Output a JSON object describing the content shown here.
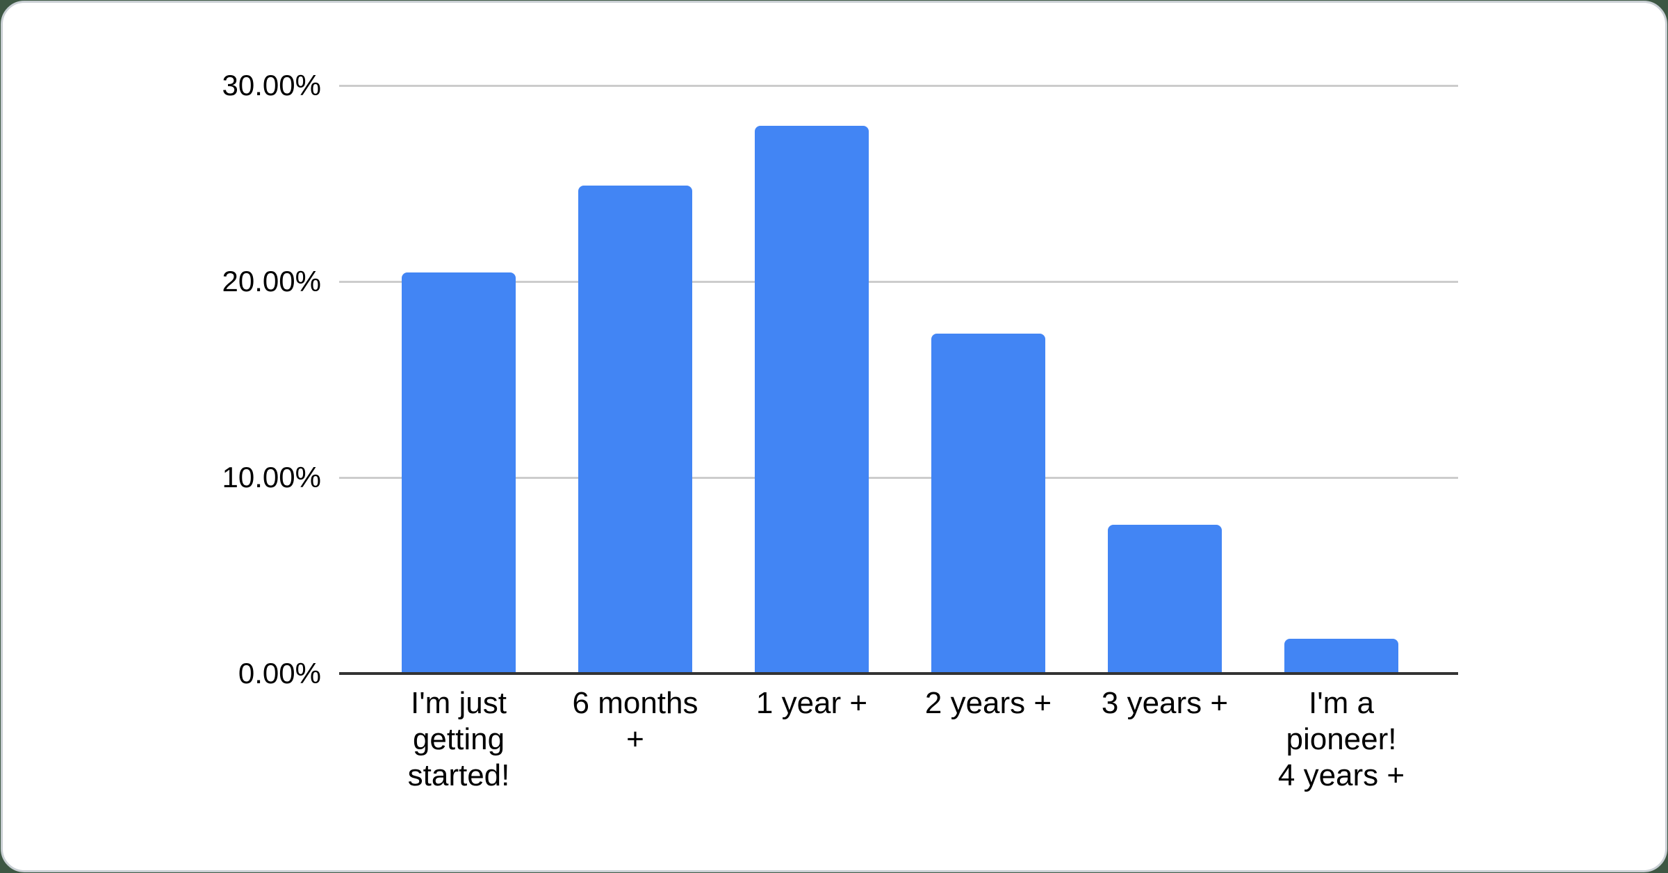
{
  "page": {
    "background_color": "#3d5743"
  },
  "card": {
    "background_color": "#ffffff",
    "border_color": "#c9cfd4"
  },
  "chart_data": {
    "type": "bar",
    "title": "",
    "xlabel": "",
    "ylabel": "",
    "categories": [
      "I'm just getting started!",
      "6 months +",
      "1 year +",
      "2 years +",
      "3 years +",
      "I'm a pioneer! 4 years +"
    ],
    "category_lines": [
      [
        "I'm just",
        "getting",
        "started!"
      ],
      [
        "6 months",
        "+"
      ],
      [
        "1 year +"
      ],
      [
        "2 years +"
      ],
      [
        "3 years +"
      ],
      [
        "I'm a",
        "pioneer!",
        "4 years +"
      ]
    ],
    "values": [
      20.45,
      24.89,
      27.96,
      17.34,
      7.59,
      1.77
    ],
    "value_unit": "%",
    "ylim": [
      0,
      30
    ],
    "yticks": [
      0,
      10,
      20,
      30
    ],
    "ytick_labels": [
      "0.00%",
      "10.00%",
      "20.00%",
      "30.00%"
    ],
    "grid": true,
    "legend": "none",
    "bar_color": "#4285f4",
    "gridline_color": "#cccccc",
    "axis_line_color": "#333333",
    "text_color": "#000000"
  }
}
